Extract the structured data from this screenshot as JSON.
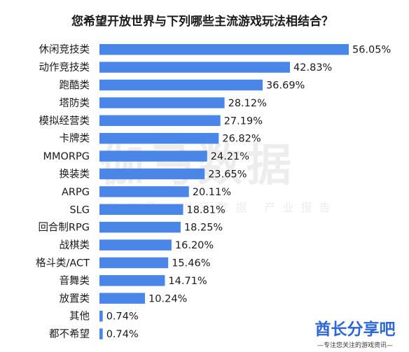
{
  "watermark": {
    "main": "伽马数据",
    "sub": "微信号：伽马数据 产业报告"
  },
  "logo": {
    "name": "酋长分享吧",
    "tagline": "—专注您关注的游戏资讯—"
  },
  "colors": {
    "bar": "#4a86e8",
    "title": "#1a1a1a",
    "logo": "#2f67d4"
  },
  "chart_data": {
    "type": "bar",
    "orientation": "horizontal",
    "title": "您希望开放世界与下列哪些主流游戏玩法相结合？",
    "categories": [
      "休闲竞技类",
      "动作竞技类",
      "跑酷类",
      "塔防类",
      "模拟经营类",
      "卡牌类",
      "MMORPG",
      "换装类",
      "ARPG",
      "SLG",
      "回合制RPG",
      "战棋类",
      "格斗类/ACT",
      "音舞类",
      "放置类",
      "其他",
      "都不希望"
    ],
    "values": [
      56.05,
      42.83,
      36.69,
      28.12,
      27.19,
      26.82,
      24.21,
      23.65,
      20.11,
      18.81,
      18.25,
      16.2,
      15.46,
      14.71,
      10.24,
      0.74,
      0.74
    ],
    "value_labels": [
      "56.05%",
      "42.83%",
      "36.69%",
      "28.12%",
      "27.19%",
      "26.82%",
      "24.21%",
      "23.65%",
      "20.11%",
      "18.81%",
      "18.25%",
      "16.20%",
      "15.46%",
      "14.71%",
      "10.24%",
      "0.74%",
      "0.74%"
    ],
    "unit": "%",
    "xlim": [
      0,
      56.05
    ],
    "grid": false,
    "legend": "none"
  }
}
